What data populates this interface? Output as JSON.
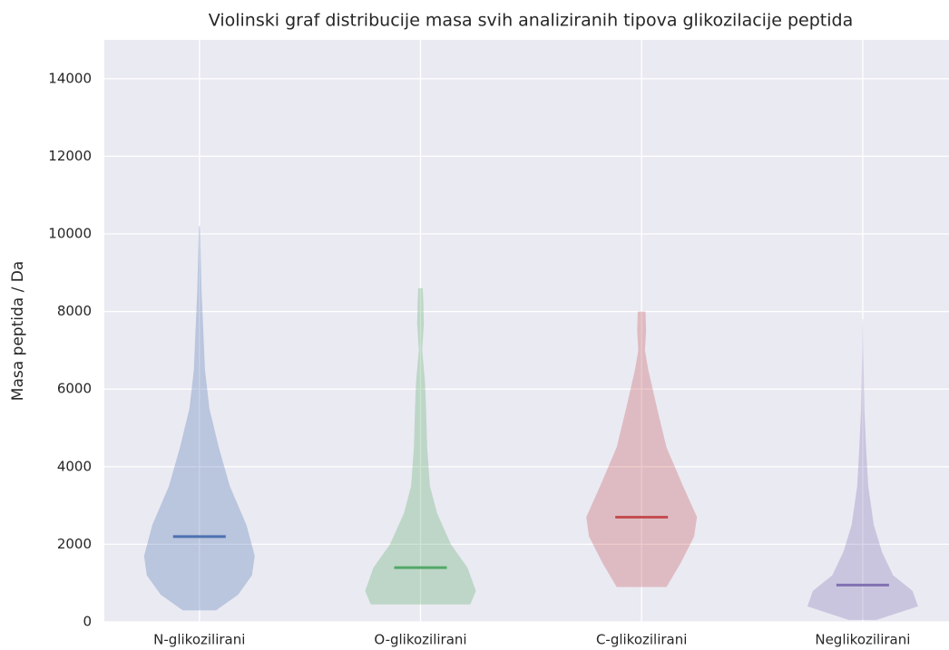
{
  "chart_data": {
    "type": "violin",
    "title": "Violinski graf distribucije masa svih analiziranih tipova glikozilacije peptida",
    "y_label": "Masa peptida / Da",
    "categories": [
      "N-glikozilirani",
      "O-glikozilirani",
      "C-glikozilirani",
      "Neglikozilirani"
    ],
    "ylim": [
      0,
      15000
    ],
    "yticks": [
      0,
      2000,
      4000,
      6000,
      8000,
      10000,
      12000,
      14000
    ],
    "grid": true,
    "series": [
      {
        "color": "#4c72b0",
        "median": 2200,
        "profile": {
          "y": [
            300,
            700,
            1200,
            1700,
            2500,
            3500,
            4500,
            5500,
            6500,
            7500,
            8500,
            10200
          ],
          "width": [
            0.3,
            0.7,
            0.95,
            1.0,
            0.85,
            0.55,
            0.35,
            0.18,
            0.1,
            0.07,
            0.04,
            0.01
          ]
        }
      },
      {
        "color": "#55a868",
        "median": 1400,
        "profile": {
          "y": [
            450,
            800,
            1400,
            2000,
            2800,
            3500,
            4500,
            5500,
            6200,
            7000,
            7700,
            8300,
            8600
          ],
          "width": [
            0.9,
            1.0,
            0.85,
            0.55,
            0.3,
            0.17,
            0.12,
            0.1,
            0.08,
            0.03,
            0.06,
            0.05,
            0.04
          ]
        }
      },
      {
        "color": "#c44e52",
        "median": 2700,
        "profile": {
          "y": [
            900,
            1500,
            2200,
            2700,
            3500,
            4500,
            5500,
            6500,
            7000,
            7500,
            8000
          ],
          "width": [
            0.45,
            0.7,
            0.95,
            1.0,
            0.75,
            0.45,
            0.28,
            0.12,
            0.06,
            0.08,
            0.07
          ]
        }
      },
      {
        "color": "#8172b2",
        "median": 950,
        "profile": {
          "y": [
            50,
            400,
            800,
            1200,
            1800,
            2500,
            3500,
            4500,
            5500,
            7000,
            7800
          ],
          "width": [
            0.25,
            1.0,
            0.9,
            0.55,
            0.35,
            0.2,
            0.1,
            0.06,
            0.03,
            0.01,
            0.005
          ]
        }
      }
    ]
  }
}
